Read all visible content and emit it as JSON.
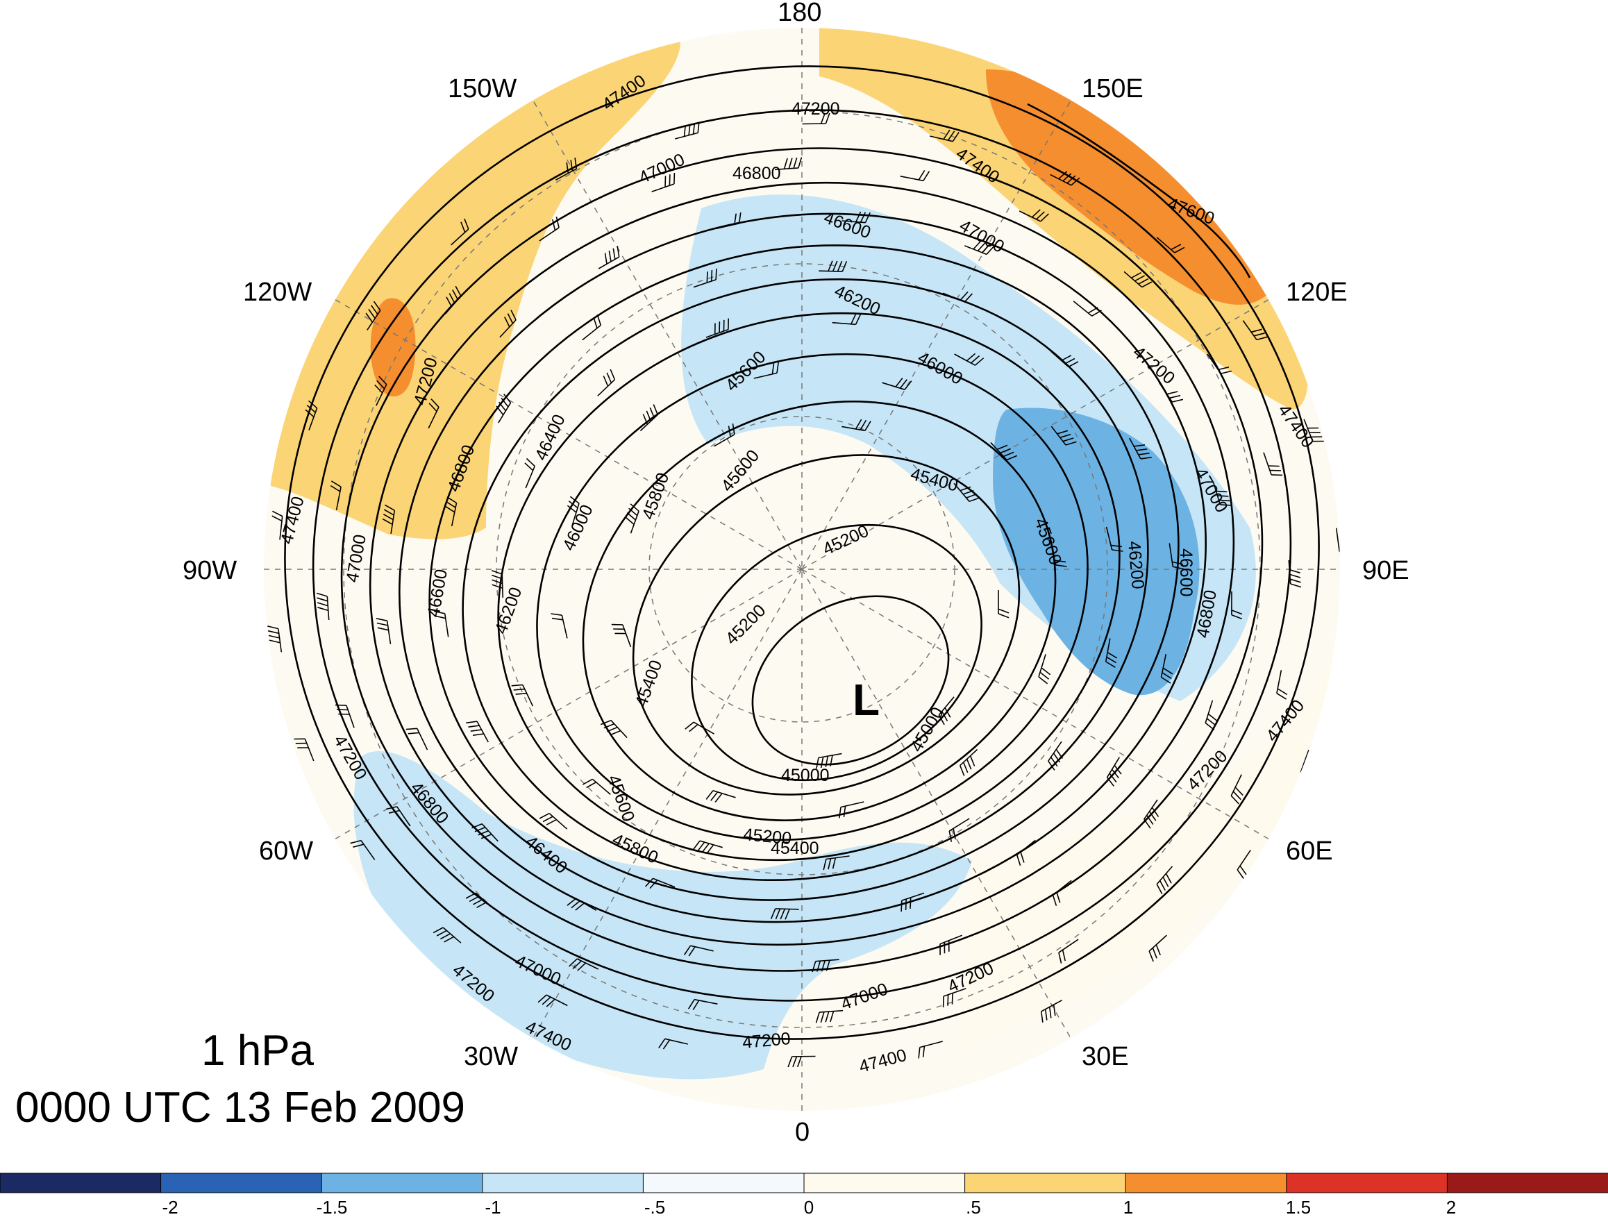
{
  "title": {
    "level": "1 hPa",
    "time": "0000 UTC 13 Feb 2009"
  },
  "longitude_labels": {
    "lon_180": "180",
    "lon_150e": "150E",
    "lon_120e": "120E",
    "lon_90e": "90E",
    "lon_60e": "60E",
    "lon_30e": "30E",
    "lon_0": "0",
    "lon_30w": "30W",
    "lon_60w": "60W",
    "lon_90w": "90W",
    "lon_120w": "120W",
    "lon_150w": "150W"
  },
  "low_marker": "L",
  "contour_labels": [
    "47400",
    "47200",
    "47000",
    "46800",
    "46600",
    "46200",
    "46000",
    "45400",
    "45200",
    "45600",
    "45800",
    "46400",
    "47600",
    "45000"
  ],
  "colorbar": {
    "ticks": [
      "-2",
      "-1.5",
      "-1",
      "-.5",
      "0",
      ".5",
      "1",
      "1.5",
      "2"
    ],
    "colors": [
      "#1c2a63",
      "#2a63b5",
      "#6cb3e4",
      "#c6e5f6",
      "#f4f9fd",
      "#fefaee",
      "#fbd475",
      "#f58e2e",
      "#dc3326",
      "#9a1a1a"
    ]
  }
}
